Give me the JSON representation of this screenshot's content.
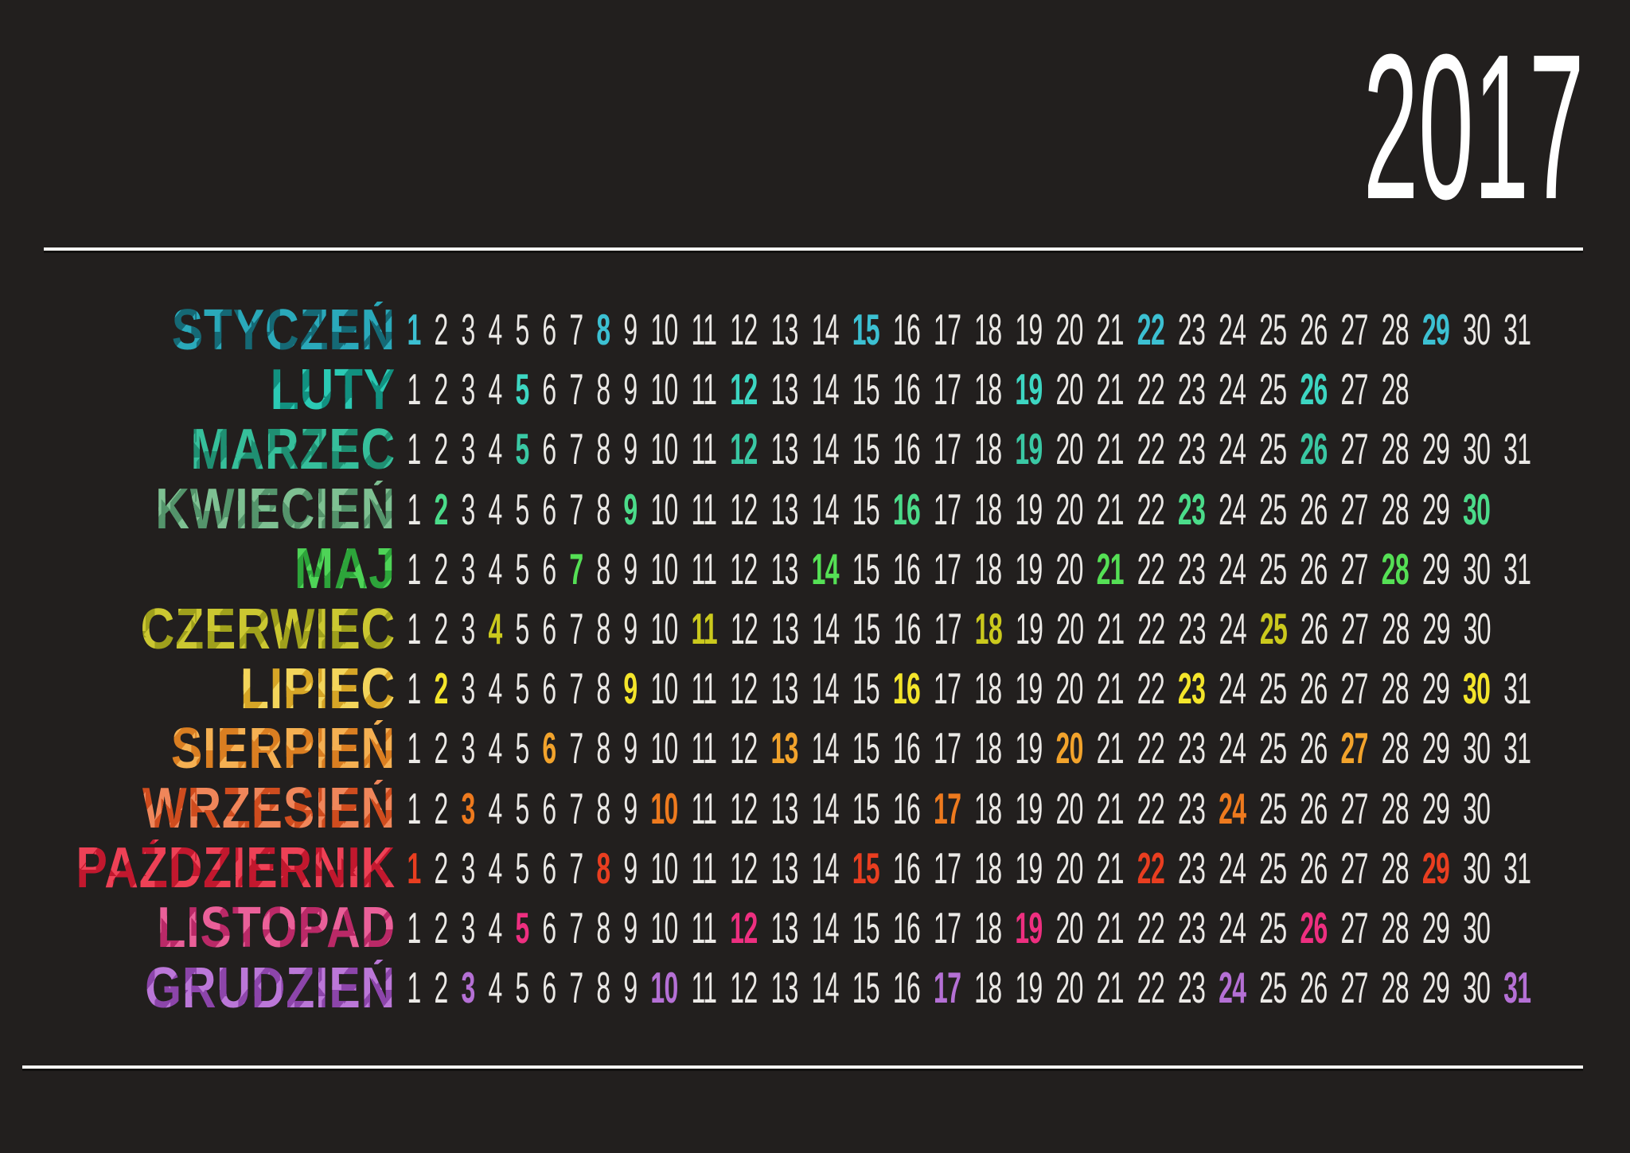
{
  "title": "2017",
  "background_color": "#221f1e",
  "number_color": "#ebe9e6",
  "divider_color": "#f7f6f4",
  "months": [
    {
      "name": "STYCZEŃ",
      "accent": "#3cc0d2",
      "name_color_dark": "#156975",
      "name_color_light": "#2aa9ba",
      "days_in_month": 31,
      "highlighted_days": [
        1,
        8,
        15,
        22,
        29
      ]
    },
    {
      "name": "LUTY",
      "accent": "#3dd6c2",
      "name_color_dark": "#119180",
      "name_color_light": "#2bcab4",
      "days_in_month": 28,
      "highlighted_days": [
        5,
        12,
        19,
        26
      ]
    },
    {
      "name": "MARZEC",
      "accent": "#3ac8a4",
      "name_color_dark": "#1f8f72",
      "name_color_light": "#36bf9b",
      "days_in_month": 31,
      "highlighted_days": [
        5,
        12,
        19,
        26
      ]
    },
    {
      "name": "KWIECIEŃ",
      "accent": "#4bdc8a",
      "name_color_dark": "#54946b",
      "name_color_light": "#7ec092",
      "days_in_month": 30,
      "highlighted_days": [
        2,
        9,
        16,
        23,
        30
      ]
    },
    {
      "name": "MAJ",
      "accent": "#55e055",
      "name_color_dark": "#2da43a",
      "name_color_light": "#4ed457",
      "days_in_month": 31,
      "highlighted_days": [
        7,
        14,
        21,
        28
      ]
    },
    {
      "name": "CZERWIEC",
      "accent": "#cbc91d",
      "name_color_dark": "#9fa01c",
      "name_color_light": "#cbc731",
      "days_in_month": 30,
      "highlighted_days": [
        4,
        11,
        18,
        25
      ]
    },
    {
      "name": "LIPIEC",
      "accent": "#f4e52b",
      "name_color_dark": "#d6a526",
      "name_color_light": "#f3d55b",
      "days_in_month": 31,
      "highlighted_days": [
        2,
        9,
        16,
        23,
        30
      ]
    },
    {
      "name": "SIERPIEŃ",
      "accent": "#f2a32c",
      "name_color_dark": "#da7e21",
      "name_color_light": "#f5b052",
      "days_in_month": 31,
      "highlighted_days": [
        6,
        13,
        20,
        27
      ]
    },
    {
      "name": "WRZESIEŃ",
      "accent": "#ee7a1e",
      "name_color_dark": "#cf4c1e",
      "name_color_light": "#f0865a",
      "days_in_month": 30,
      "highlighted_days": [
        3,
        10,
        17,
        24
      ]
    },
    {
      "name": "PAŹDZIERNIK",
      "accent": "#e93e20",
      "name_color_dark": "#c2182e",
      "name_color_light": "#ee4156",
      "days_in_month": 31,
      "highlighted_days": [
        1,
        8,
        15,
        22,
        29
      ]
    },
    {
      "name": "LISTOPAD",
      "accent": "#ee2f80",
      "name_color_dark": "#ba2967",
      "name_color_light": "#ea6099",
      "days_in_month": 30,
      "highlighted_days": [
        5,
        12,
        19,
        26
      ]
    },
    {
      "name": "GRUDZIEŃ",
      "accent": "#b570d5",
      "name_color_dark": "#8c45aa",
      "name_color_light": "#bb77d8",
      "days_in_month": 31,
      "highlighted_days": [
        3,
        10,
        17,
        24,
        31
      ]
    }
  ]
}
